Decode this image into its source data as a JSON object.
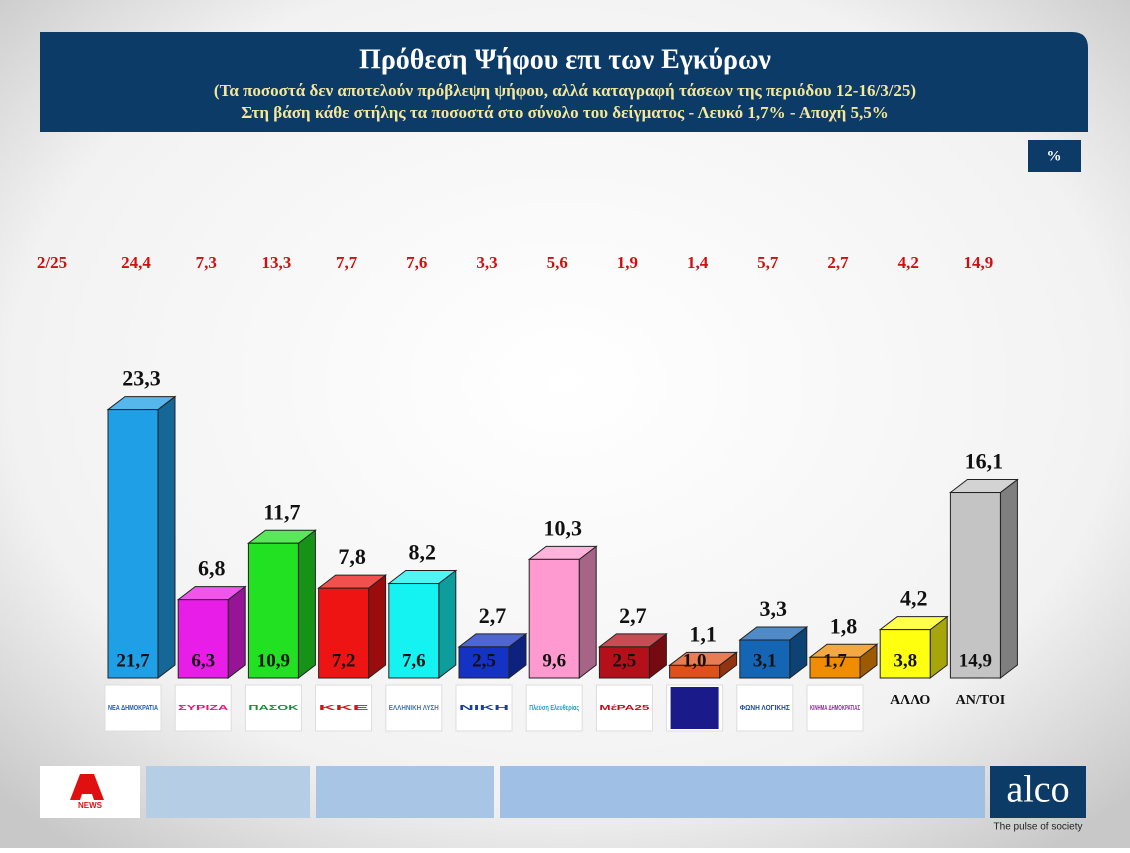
{
  "chart_data": {
    "type": "bar3d",
    "title": "Πρόθεση Ψήφου επι των Εγκύρων",
    "subtitle": "(Τα ποσοστά δεν αποτελούν πρόβλεψη ψήφου, αλλά καταγραφή τάσεων της περιόδου  12-16/3/25)",
    "note": "Στη βάση κάθε στήλης τα ποσοστά στο σύνολο του δείγματος - Λευκό 1,7% - Αποχή 5,5%",
    "unit": "%",
    "categories": [
      "ΝΕΑ ΔΗΜΟΚΡΑΤΙΑ",
      "ΣΥΡΙΖΑ",
      "ΠΑΣΟΚ",
      "ΚΚΕ",
      "ΕΛΛΗΝΙΚΗ ΛΥΣΗ",
      "ΝΙΚΗ",
      "Πλεύση Ελευθερίας",
      "ΜέΡΑ25",
      null,
      "ΦΩΝΗ ΛΟΓΙΚΗΣ",
      "ΚΙΝΗΜΑ ΔΗΜΟΚΡΑΤΙΑΣ",
      "ΑΛΛΟ",
      "ΑΝ/ΤΟΙ"
    ],
    "logo_colors": [
      "#1a5fb4",
      "#e0187a",
      "#1e8a3a",
      "#d8101a",
      "#3a7ab8",
      "#1a40a0",
      "#20a0c0",
      "#c01020",
      "#c00030",
      "#1a4a9a",
      "#8a30a0",
      null,
      null
    ],
    "series": [
      {
        "values": [
          23.3,
          6.8,
          11.7,
          7.8,
          8.2,
          2.7,
          10.3,
          2.7,
          1.1,
          3.3,
          1.8,
          4.2,
          16.1
        ],
        "value_labels": [
          "23,3",
          "6,8",
          "11,7",
          "7,8",
          "8,2",
          "2,7",
          "10,3",
          "2,7",
          "1,1",
          "3,3",
          "1,8",
          "4,2",
          "16,1"
        ],
        "colors": [
          "#1e9fe6",
          "#e81ee8",
          "#22e022",
          "#ee1414",
          "#14f2f2",
          "#1432c4",
          "#ff9ad0",
          "#b4101a",
          "#e0501a",
          "#1466b4",
          "#f08c00",
          "#ffff10",
          "#c4c4c4"
        ]
      },
      {
        "values": [
          21.7,
          6.3,
          10.9,
          7.2,
          7.6,
          2.5,
          9.6,
          2.5,
          1.0,
          3.1,
          1.7,
          3.8,
          14.9
        ],
        "value_labels": [
          "21,7",
          "6,3",
          "10,9",
          "7,2",
          "7,6",
          "2,5",
          "9,6",
          "2,5",
          "1,0",
          "3,1",
          "1,7",
          "3,8",
          "14,9"
        ]
      }
    ],
    "previous": {
      "name": "2/25",
      "values": [
        24.4,
        7.3,
        13.3,
        7.7,
        7.6,
        3.3,
        5.6,
        1.9,
        1.4,
        5.7,
        2.7,
        4.2,
        14.9
      ],
      "value_labels": [
        "24,4",
        "7,3",
        "13,3",
        "7,7",
        "7,6",
        "3,3",
        "5,6",
        "1,9",
        "1,4",
        "5,7",
        "2,7",
        "4,2",
        "14,9"
      ]
    },
    "ylim": [
      0,
      25
    ]
  },
  "footer": {
    "news": "NEWS",
    "brand": "alco",
    "tagline": "The pulse of society"
  }
}
